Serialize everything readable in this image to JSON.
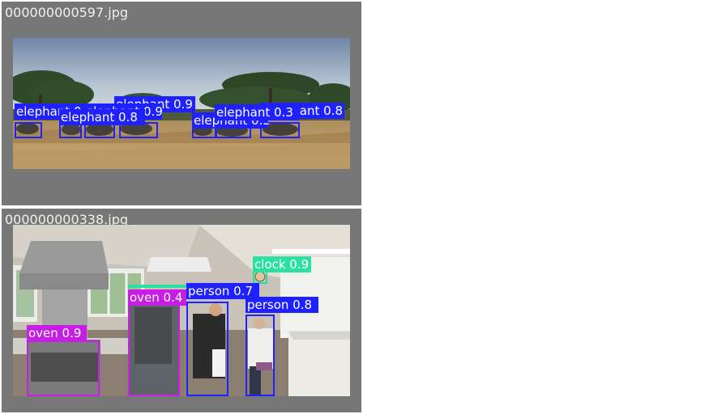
{
  "panels": [
    {
      "filename": "000000000597.jpg",
      "image_alt": "Elephants walking across a savanna with acacia trees",
      "detections": [
        {
          "label": "elephant 0.9",
          "class": "elephant",
          "score": 0.9,
          "color": "#1f22ff"
        },
        {
          "label": "elephant 0.8",
          "class": "elephant",
          "score": 0.8,
          "color": "#1f22ff"
        },
        {
          "label": "elephant 0.9",
          "class": "elephant",
          "score": 0.9,
          "color": "#1f22ff"
        },
        {
          "label": "elephant 0.9",
          "class": "elephant",
          "score": 0.9,
          "color": "#1f22ff"
        },
        {
          "label": "elephant 0.3",
          "class": "elephant",
          "score": 0.3,
          "color": "#1f22ff"
        },
        {
          "label": "elephant 0.3",
          "class": "elephant",
          "score": 0.3,
          "color": "#1f22ff"
        },
        {
          "label": "elephant 0.8",
          "class": "elephant",
          "score": 0.8,
          "color": "#1f22ff"
        }
      ]
    },
    {
      "filename": "000000000338.jpg",
      "image_alt": "Kitchen with two people, a stove oven, refrigerator and a wall clock",
      "detections": [
        {
          "label": "clock 0.9",
          "class": "clock",
          "score": 0.9,
          "color": "#2be0a0"
        },
        {
          "label": "oven 0.4",
          "class": "oven",
          "score": 0.4,
          "color": "#c71ee6"
        },
        {
          "label": "person 0.7",
          "class": "person",
          "score": 0.7,
          "color": "#1f22ff"
        },
        {
          "label": "person 0.8",
          "class": "person",
          "score": 0.8,
          "color": "#1f22ff"
        },
        {
          "label": "oven 0.9",
          "class": "oven",
          "score": 0.9,
          "color": "#c71ee6"
        }
      ]
    }
  ],
  "colors": {
    "background": "#ffffff",
    "panel": "#777777",
    "elephant": "#1f22ff",
    "person": "#1f22ff",
    "oven": "#c71ee6",
    "clock": "#2be0a0"
  }
}
